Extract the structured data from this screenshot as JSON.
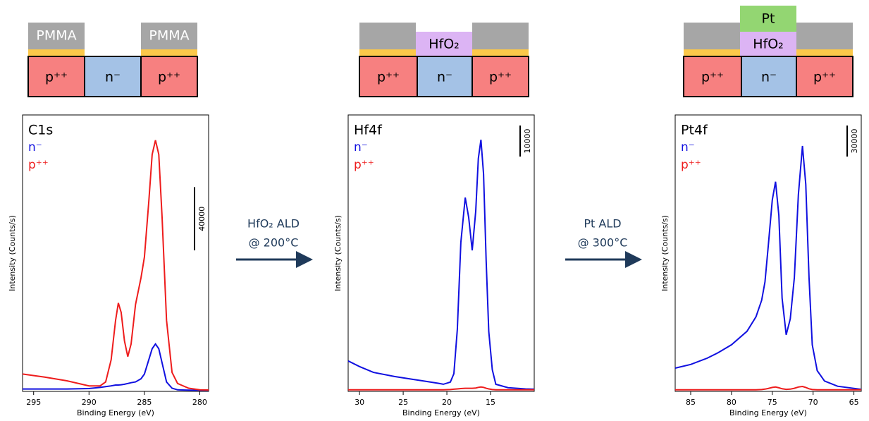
{
  "chart_data": [
    {
      "type": "line",
      "title": "C1s",
      "xlabel": "Binding Energy (eV)",
      "ylabel": "Intensity (Counts/s)",
      "xlim": [
        296,
        279.2
      ],
      "xticks": [
        295,
        290,
        285,
        280
      ],
      "ylim": [
        0,
        175000
      ],
      "scalebar": 40000,
      "x": [
        296,
        294,
        292,
        290,
        289,
        288.5,
        288,
        287.6,
        287.35,
        287.1,
        286.8,
        286.5,
        286.2,
        285.8,
        285.3,
        285,
        284.6,
        284.3,
        284,
        283.7,
        283.4,
        283,
        282.5,
        282,
        281,
        280,
        279.2
      ],
      "series": [
        {
          "name": "n⁻",
          "color": "#1010e0",
          "values": [
            1500,
            1500,
            1500,
            1800,
            2500,
            3000,
            3500,
            4000,
            4000,
            4200,
            4500,
            5000,
            5500,
            6000,
            8000,
            11000,
            20000,
            27000,
            30000,
            27000,
            18000,
            6000,
            2000,
            1000,
            800,
            700,
            700
          ]
        },
        {
          "name": "p⁺⁺",
          "color": "#ee1c1c",
          "values": [
            11000,
            9000,
            6700,
            3500,
            3500,
            6000,
            20000,
            45000,
            56000,
            50000,
            32000,
            22000,
            30000,
            55000,
            72000,
            85000,
            120000,
            150000,
            159000,
            150000,
            110000,
            45000,
            12000,
            5000,
            2000,
            1000,
            900
          ]
        }
      ]
    },
    {
      "type": "line",
      "title": "Hf4f",
      "xlabel": "Binding Energy (eV)",
      "ylabel": "Intensity (Counts/s)",
      "xlim": [
        31.3,
        10
      ],
      "xticks": [
        30,
        25,
        20,
        15
      ],
      "ylim": [
        0,
        89000
      ],
      "scalebar": 10000,
      "x": [
        31.3,
        30,
        28.4,
        26,
        24,
        22.8,
        21,
        20.4,
        19.6,
        19.2,
        18.8,
        18.4,
        17.9,
        17.5,
        17.1,
        16.7,
        16.4,
        16.1,
        15.8,
        15.5,
        15.2,
        14.8,
        14.4,
        13,
        11,
        10
      ],
      "series": [
        {
          "name": "n⁻",
          "color": "#1010e0",
          "values": [
            9800,
            8000,
            6100,
            4800,
            3900,
            3400,
            2600,
            2300,
            3000,
            5700,
            20000,
            48000,
            62400,
            56000,
            45400,
            58000,
            75000,
            81000,
            70000,
            42000,
            19300,
            7000,
            2300,
            1200,
            800,
            700
          ]
        },
        {
          "name": "p⁺⁺",
          "color": "#ee1c1c",
          "values": [
            500,
            500,
            500,
            500,
            500,
            500,
            500,
            500,
            600,
            700,
            800,
            900,
            1000,
            1000,
            1000,
            1100,
            1300,
            1400,
            1300,
            1000,
            800,
            600,
            500,
            500,
            500,
            500
          ]
        }
      ]
    },
    {
      "type": "line",
      "title": "Pt4f",
      "xlabel": "Binding Energy (eV)",
      "ylabel": "Intensity (Counts/s)",
      "xlim": [
        86.9,
        64.1
      ],
      "xticks": [
        85,
        80,
        75,
        70,
        65
      ],
      "ylim": [
        0,
        267000
      ],
      "scalebar": 30000,
      "x": [
        86.9,
        85,
        83,
        81.6,
        80,
        78.1,
        77,
        76.3,
        75.9,
        75.5,
        75,
        74.6,
        74.2,
        73.8,
        73.3,
        72.8,
        72.3,
        71.8,
        71.3,
        70.9,
        70.5,
        70.1,
        69.5,
        68.6,
        67,
        64.1
      ],
      "series": [
        {
          "name": "n⁻",
          "color": "#1010e0",
          "values": [
            22500,
            26000,
            32000,
            37500,
            45000,
            58000,
            72000,
            88000,
            105700,
            140000,
            185000,
            202500,
            170000,
            90000,
            54600,
            70000,
            110000,
            190000,
            237000,
            200000,
            110000,
            45000,
            20000,
            10000,
            5000,
            2000
          ]
        },
        {
          "name": "p⁺⁺",
          "color": "#ee1c1c",
          "values": [
            1500,
            1500,
            1500,
            1500,
            1500,
            1500,
            1500,
            1800,
            2200,
            2800,
            3800,
            4200,
            3500,
            2500,
            2000,
            2200,
            3000,
            4200,
            4800,
            3800,
            2500,
            1800,
            1500,
            1500,
            1500,
            1500
          ]
        }
      ]
    }
  ],
  "schematics": [
    {
      "top": [
        "PMMA",
        "PMMA"
      ],
      "junction": [
        "p⁺⁺",
        "n⁻",
        "p⁺⁺"
      ]
    },
    {
      "top": [
        "HfO₂"
      ],
      "junction": [
        "p⁺⁺",
        "n⁻",
        "p⁺⁺"
      ]
    },
    {
      "top": [
        "Pt",
        "HfO₂"
      ],
      "junction": [
        "p⁺⁺",
        "n⁻",
        "p⁺⁺"
      ]
    }
  ],
  "steps": [
    {
      "lines": [
        "HfO₂ ALD",
        "@ 200°C"
      ]
    },
    {
      "lines": [
        "Pt ALD",
        "@ 300°C"
      ]
    }
  ]
}
